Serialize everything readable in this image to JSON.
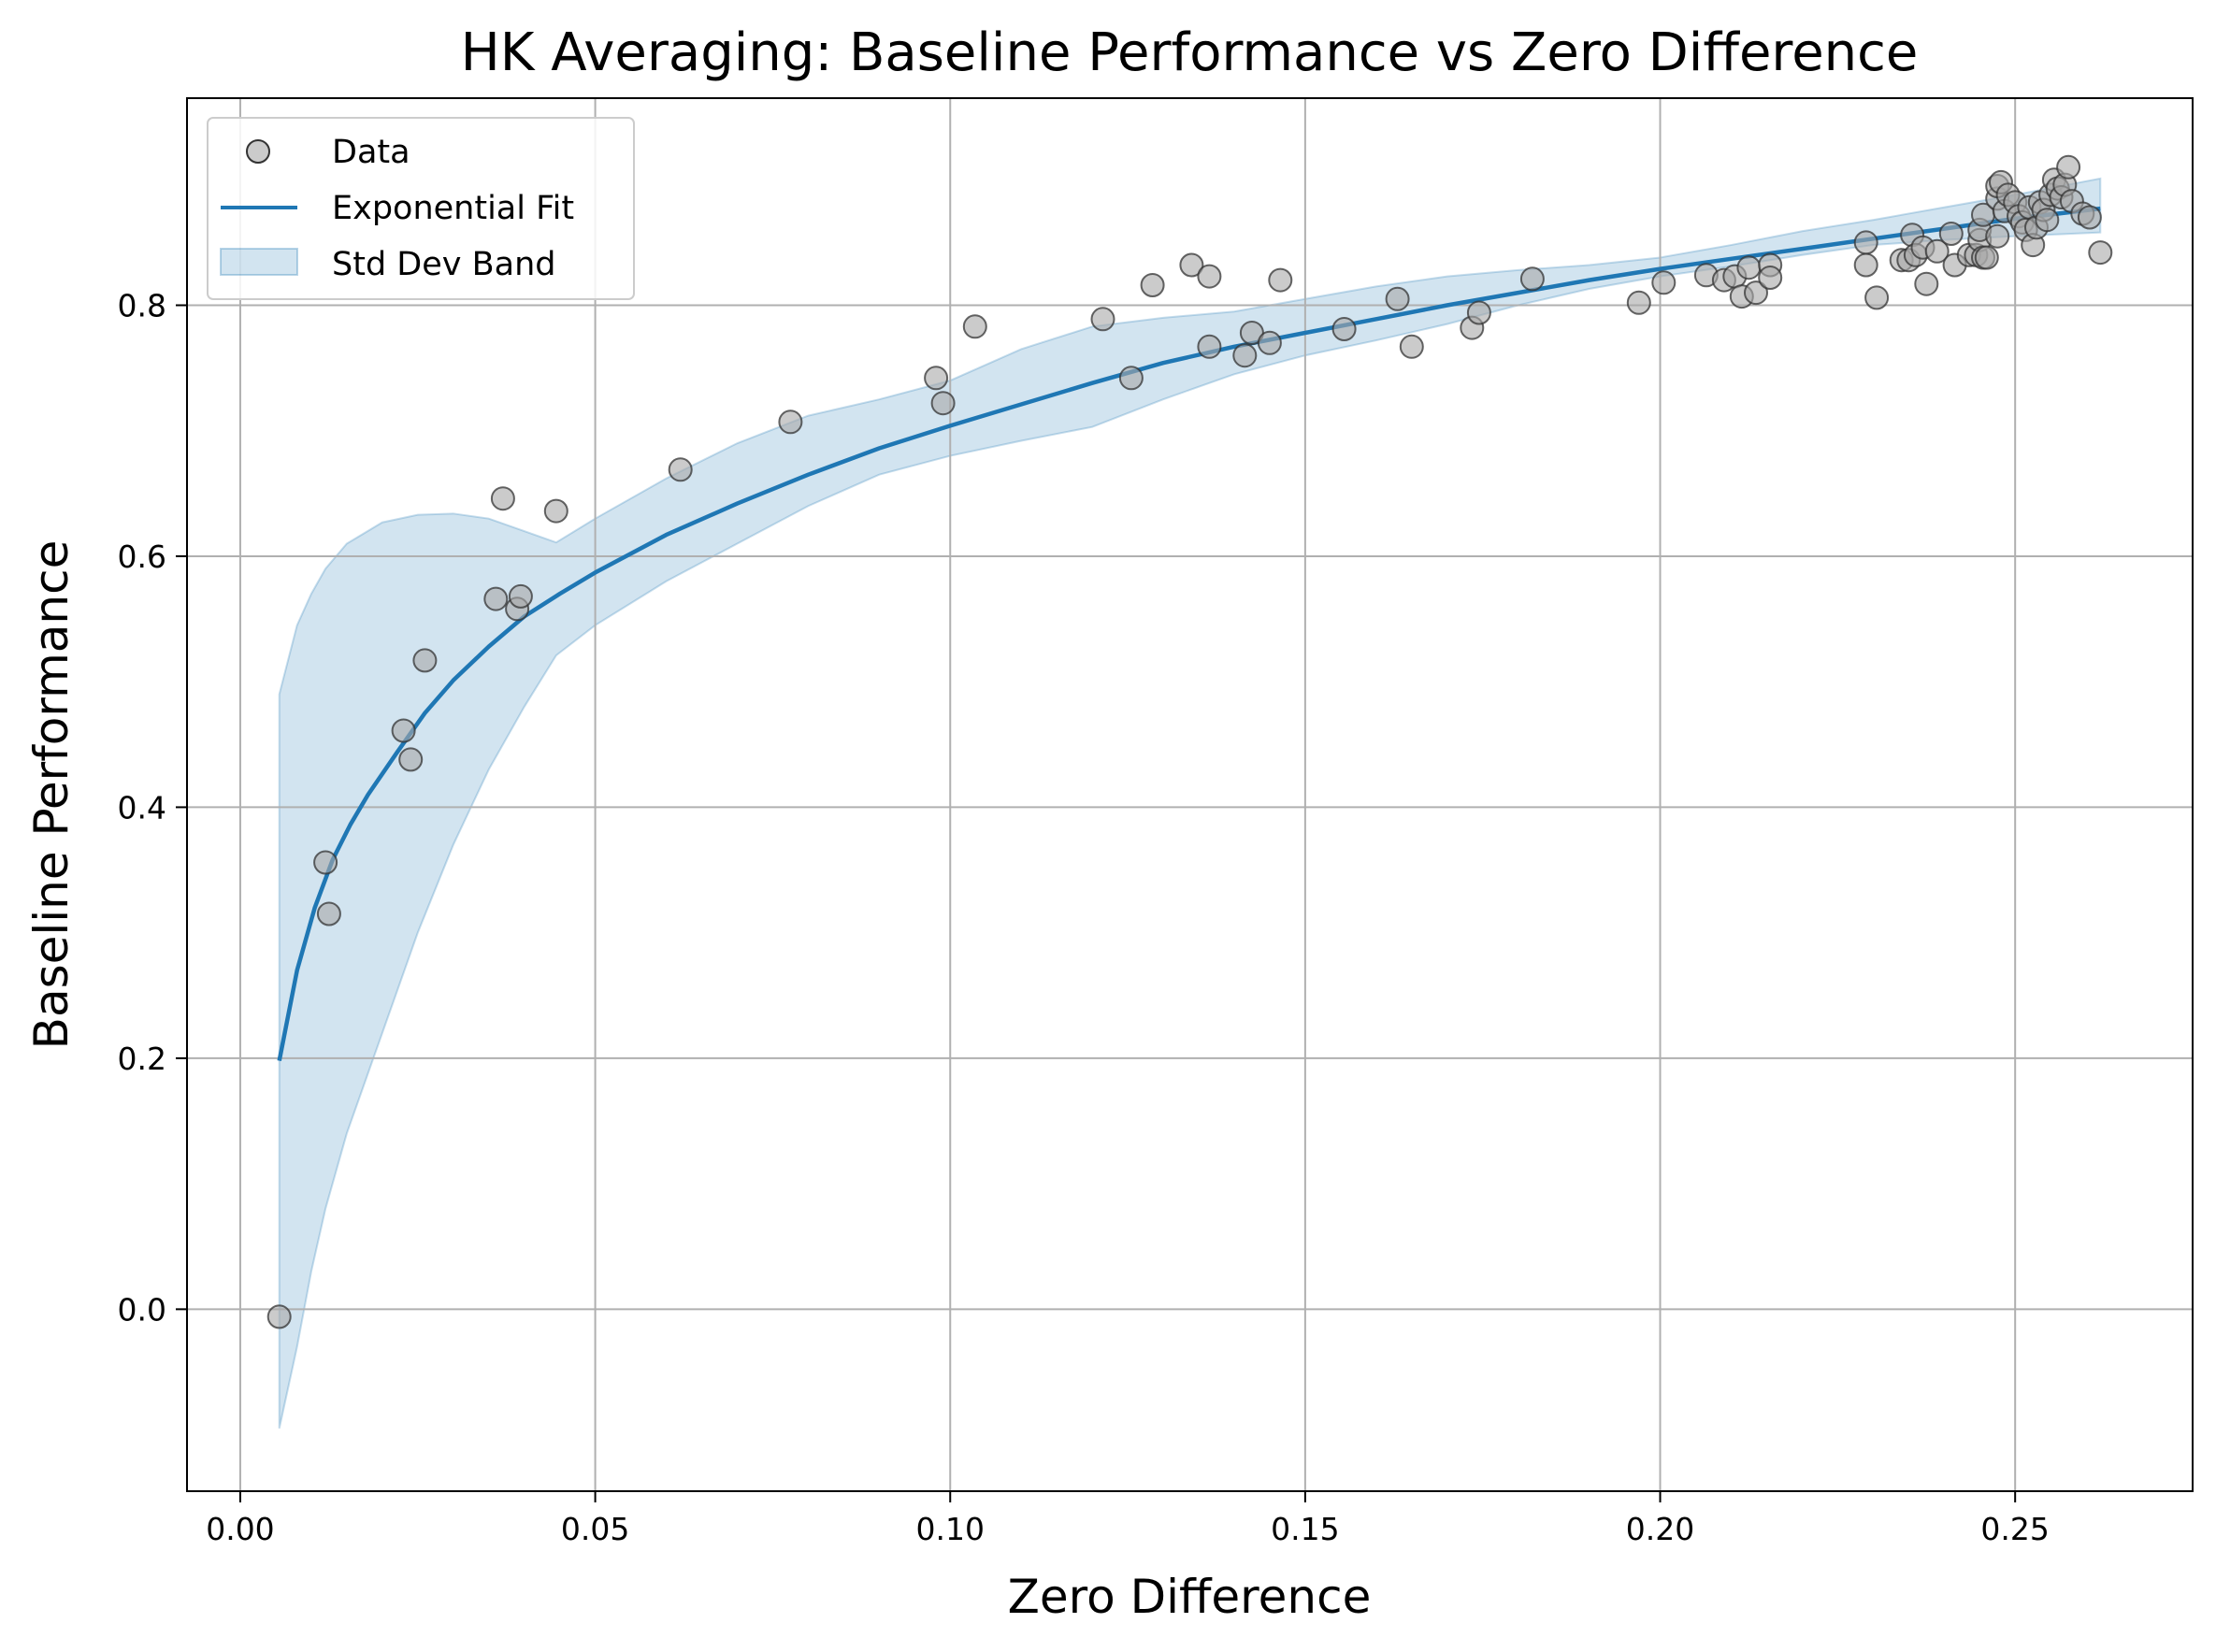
{
  "chart_data": {
    "type": "scatter",
    "title": "HK Averaging: Baseline Performance vs Zero Difference",
    "xlabel": "Zero Difference",
    "ylabel": "Baseline Performance",
    "xlim": [
      -0.0075,
      0.275
    ],
    "ylim": [
      -0.145,
      0.965
    ],
    "x_ticks": [
      0.0,
      0.05,
      0.1,
      0.15,
      0.2,
      0.25
    ],
    "x_tick_labels": [
      "0.00",
      "0.05",
      "0.10",
      "0.15",
      "0.20",
      "0.25"
    ],
    "y_ticks": [
      0.0,
      0.2,
      0.4,
      0.6,
      0.8
    ],
    "y_tick_labels": [
      "0.0",
      "0.2",
      "0.4",
      "0.6",
      "0.8"
    ],
    "grid": true,
    "legend_position": "top-left",
    "legend": [
      {
        "label": "Data",
        "kind": "marker"
      },
      {
        "label": "Exponential Fit",
        "kind": "line"
      },
      {
        "label": "Std Dev Band",
        "kind": "patch"
      }
    ],
    "colors": {
      "points_fill": "#a9a9a9",
      "points_edge": "#333333",
      "fit_line": "#1f77b4",
      "band": "#1f77b4",
      "grid": "#b0b0b0"
    },
    "series": [
      {
        "name": "Data",
        "type": "scatter",
        "points": [
          [
            0.0055,
            -0.006
          ],
          [
            0.012,
            0.356
          ],
          [
            0.0125,
            0.315
          ],
          [
            0.023,
            0.461
          ],
          [
            0.024,
            0.438
          ],
          [
            0.026,
            0.517
          ],
          [
            0.036,
            0.566
          ],
          [
            0.037,
            0.646
          ],
          [
            0.039,
            0.558
          ],
          [
            0.0395,
            0.568
          ],
          [
            0.0445,
            0.636
          ],
          [
            0.062,
            0.669
          ],
          [
            0.0775,
            0.707
          ],
          [
            0.098,
            0.742
          ],
          [
            0.099,
            0.722
          ],
          [
            0.1035,
            0.783
          ],
          [
            0.1215,
            0.789
          ],
          [
            0.1255,
            0.742
          ],
          [
            0.1285,
            0.816
          ],
          [
            0.134,
            0.832
          ],
          [
            0.1365,
            0.823
          ],
          [
            0.1365,
            0.767
          ],
          [
            0.1415,
            0.76
          ],
          [
            0.1425,
            0.778
          ],
          [
            0.145,
            0.77
          ],
          [
            0.1465,
            0.82
          ],
          [
            0.1555,
            0.781
          ],
          [
            0.163,
            0.805
          ],
          [
            0.165,
            0.767
          ],
          [
            0.1735,
            0.782
          ],
          [
            0.1745,
            0.794
          ],
          [
            0.182,
            0.821
          ],
          [
            0.197,
            0.802
          ],
          [
            0.2005,
            0.818
          ],
          [
            0.2065,
            0.824
          ],
          [
            0.209,
            0.82
          ],
          [
            0.2105,
            0.823
          ],
          [
            0.2115,
            0.807
          ],
          [
            0.2125,
            0.83
          ],
          [
            0.2135,
            0.81
          ],
          [
            0.2155,
            0.832
          ],
          [
            0.2155,
            0.822
          ],
          [
            0.229,
            0.85
          ],
          [
            0.229,
            0.832
          ],
          [
            0.2305,
            0.806
          ],
          [
            0.234,
            0.836
          ],
          [
            0.235,
            0.836
          ],
          [
            0.2355,
            0.856
          ],
          [
            0.236,
            0.84
          ],
          [
            0.237,
            0.846
          ],
          [
            0.2375,
            0.817
          ],
          [
            0.239,
            0.843
          ],
          [
            0.241,
            0.857
          ],
          [
            0.2415,
            0.832
          ],
          [
            0.2435,
            0.84
          ],
          [
            0.2445,
            0.84
          ],
          [
            0.245,
            0.852
          ],
          [
            0.245,
            0.86
          ],
          [
            0.2455,
            0.872
          ],
          [
            0.2455,
            0.838
          ],
          [
            0.246,
            0.838
          ],
          [
            0.2475,
            0.885
          ],
          [
            0.2475,
            0.895
          ],
          [
            0.2475,
            0.855
          ],
          [
            0.248,
            0.898
          ],
          [
            0.2485,
            0.875
          ],
          [
            0.249,
            0.888
          ],
          [
            0.25,
            0.882
          ],
          [
            0.2505,
            0.871
          ],
          [
            0.251,
            0.866
          ],
          [
            0.2515,
            0.86
          ],
          [
            0.252,
            0.878
          ],
          [
            0.2525,
            0.848
          ],
          [
            0.253,
            0.862
          ],
          [
            0.2535,
            0.882
          ],
          [
            0.254,
            0.876
          ],
          [
            0.2545,
            0.868
          ],
          [
            0.255,
            0.888
          ],
          [
            0.2555,
            0.9
          ],
          [
            0.256,
            0.893
          ],
          [
            0.2565,
            0.886
          ],
          [
            0.257,
            0.896
          ],
          [
            0.2575,
            0.91
          ],
          [
            0.258,
            0.883
          ],
          [
            0.2595,
            0.873
          ],
          [
            0.2605,
            0.87
          ],
          [
            0.262,
            0.842
          ]
        ]
      },
      {
        "name": "Exponential Fit",
        "type": "line",
        "points": [
          [
            0.0055,
            0.198
          ],
          [
            0.008,
            0.27
          ],
          [
            0.0105,
            0.32
          ],
          [
            0.013,
            0.358
          ],
          [
            0.0155,
            0.386
          ],
          [
            0.018,
            0.41
          ],
          [
            0.022,
            0.443
          ],
          [
            0.026,
            0.475
          ],
          [
            0.03,
            0.501
          ],
          [
            0.035,
            0.528
          ],
          [
            0.04,
            0.552
          ],
          [
            0.045,
            0.57
          ],
          [
            0.05,
            0.587
          ],
          [
            0.06,
            0.617
          ],
          [
            0.07,
            0.642
          ],
          [
            0.08,
            0.665
          ],
          [
            0.09,
            0.686
          ],
          [
            0.1,
            0.704
          ],
          [
            0.11,
            0.721
          ],
          [
            0.12,
            0.738
          ],
          [
            0.13,
            0.754
          ],
          [
            0.14,
            0.767
          ],
          [
            0.15,
            0.778
          ],
          [
            0.16,
            0.789
          ],
          [
            0.17,
            0.8
          ],
          [
            0.18,
            0.81
          ],
          [
            0.19,
            0.82
          ],
          [
            0.2,
            0.829
          ],
          [
            0.21,
            0.837
          ],
          [
            0.22,
            0.845
          ],
          [
            0.23,
            0.853
          ],
          [
            0.24,
            0.861
          ],
          [
            0.25,
            0.869
          ],
          [
            0.262,
            0.877
          ]
        ]
      },
      {
        "name": "Std Dev Band",
        "type": "area",
        "upper": [
          [
            0.0055,
            0.49
          ],
          [
            0.008,
            0.545
          ],
          [
            0.01,
            0.57
          ],
          [
            0.012,
            0.59
          ],
          [
            0.015,
            0.61
          ],
          [
            0.02,
            0.627
          ],
          [
            0.025,
            0.633
          ],
          [
            0.03,
            0.634
          ],
          [
            0.035,
            0.63
          ],
          [
            0.04,
            0.62
          ],
          [
            0.0445,
            0.611
          ],
          [
            0.05,
            0.63
          ],
          [
            0.06,
            0.662
          ],
          [
            0.07,
            0.69
          ],
          [
            0.08,
            0.712
          ],
          [
            0.09,
            0.725
          ],
          [
            0.1,
            0.74
          ],
          [
            0.11,
            0.765
          ],
          [
            0.12,
            0.783
          ],
          [
            0.13,
            0.79
          ],
          [
            0.14,
            0.795
          ],
          [
            0.15,
            0.805
          ],
          [
            0.16,
            0.815
          ],
          [
            0.17,
            0.823
          ],
          [
            0.18,
            0.828
          ],
          [
            0.19,
            0.832
          ],
          [
            0.2,
            0.838
          ],
          [
            0.21,
            0.848
          ],
          [
            0.22,
            0.859
          ],
          [
            0.23,
            0.868
          ],
          [
            0.24,
            0.878
          ],
          [
            0.25,
            0.888
          ],
          [
            0.262,
            0.901
          ]
        ],
        "lower": [
          [
            0.0055,
            -0.095
          ],
          [
            0.008,
            -0.03
          ],
          [
            0.01,
            0.03
          ],
          [
            0.012,
            0.08
          ],
          [
            0.015,
            0.14
          ],
          [
            0.02,
            0.22
          ],
          [
            0.025,
            0.3
          ],
          [
            0.03,
            0.37
          ],
          [
            0.035,
            0.43
          ],
          [
            0.04,
            0.48
          ],
          [
            0.0445,
            0.521
          ],
          [
            0.05,
            0.545
          ],
          [
            0.06,
            0.58
          ],
          [
            0.07,
            0.61
          ],
          [
            0.08,
            0.64
          ],
          [
            0.09,
            0.665
          ],
          [
            0.1,
            0.68
          ],
          [
            0.11,
            0.692
          ],
          [
            0.12,
            0.703
          ],
          [
            0.13,
            0.725
          ],
          [
            0.14,
            0.745
          ],
          [
            0.15,
            0.76
          ],
          [
            0.16,
            0.772
          ],
          [
            0.17,
            0.785
          ],
          [
            0.18,
            0.8
          ],
          [
            0.19,
            0.813
          ],
          [
            0.2,
            0.823
          ],
          [
            0.21,
            0.831
          ],
          [
            0.22,
            0.84
          ],
          [
            0.23,
            0.848
          ],
          [
            0.24,
            0.852
          ],
          [
            0.25,
            0.855
          ],
          [
            0.262,
            0.858
          ]
        ]
      }
    ]
  }
}
